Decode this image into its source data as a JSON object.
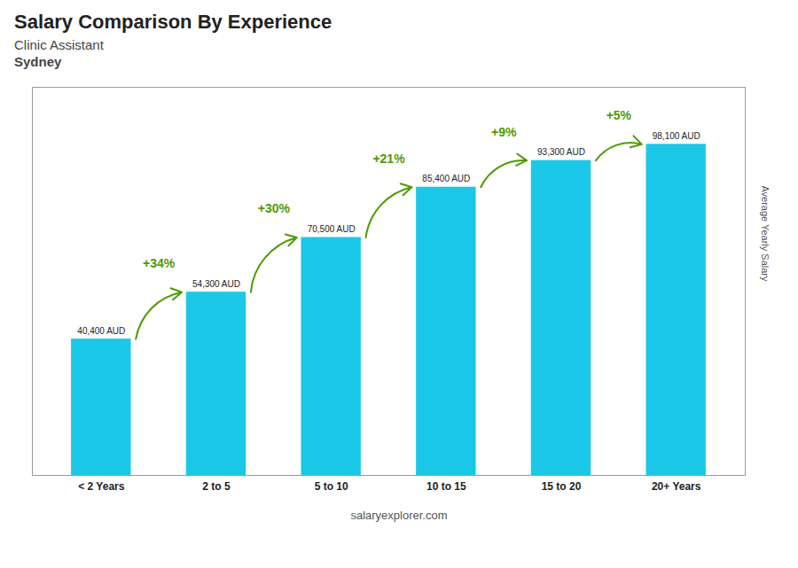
{
  "chart_data": {
    "type": "bar",
    "title": "Salary Comparison By Experience",
    "subtitle": [
      "Clinic Assistant",
      "Sydney"
    ],
    "categories": [
      "< 2 Years",
      "2 to 5",
      "5 to 10",
      "10 to 15",
      "15 to 20",
      "20+ Years"
    ],
    "values": [
      40400,
      54300,
      70500,
      85400,
      93300,
      98100
    ],
    "value_labels": [
      "40,400 AUD",
      "54,300 AUD",
      "70,500 AUD",
      "85,400 AUD",
      "93,300 AUD",
      "98,100 AUD"
    ],
    "data_labels": true,
    "color": "#1BC8E8",
    "ylabel": "Average Yearly Salary",
    "ylim": [
      0,
      115000
    ],
    "tick_labels": "x",
    "grid": false,
    "annotations": [
      "+34%",
      "+30%",
      "+21%",
      "+9%",
      "+5%"
    ],
    "caption": "salaryexplorer.com"
  }
}
